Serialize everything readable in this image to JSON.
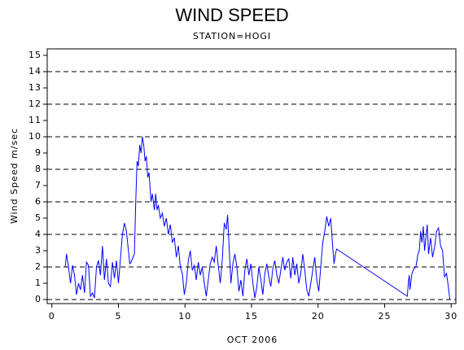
{
  "chart_data": {
    "type": "line",
    "title": "WIND SPEED",
    "subtitle": "STATION=HOGI",
    "x_label": "OCT 2006",
    "y_label": "Wind Speed m/sec",
    "xlim": [
      -0.35,
      30.35
    ],
    "xticks": [
      0,
      5,
      10,
      15,
      20,
      25,
      30
    ],
    "ylim": [
      -0.25,
      15.4
    ],
    "yticks": [
      0,
      1,
      2,
      3,
      4,
      5,
      6,
      7,
      8,
      9,
      10,
      11,
      12,
      13,
      14,
      15
    ],
    "grid_values": [
      0,
      2,
      4,
      6,
      8,
      10,
      12,
      14
    ],
    "grid_style": "dashed",
    "color": "#0000ff",
    "x": [
      1.0,
      1.1,
      1.25,
      1.4,
      1.55,
      1.7,
      1.85,
      2.0,
      2.15,
      2.3,
      2.45,
      2.6,
      2.75,
      2.9,
      3.05,
      3.2,
      3.35,
      3.5,
      3.65,
      3.8,
      3.95,
      4.1,
      4.25,
      4.4,
      4.55,
      4.7,
      4.85,
      5.0,
      5.15,
      5.3,
      5.45,
      5.6,
      5.75,
      5.85,
      5.95,
      6.05,
      6.2,
      6.3,
      6.4,
      6.5,
      6.6,
      6.7,
      6.8,
      6.9,
      7.0,
      7.1,
      7.2,
      7.3,
      7.45,
      7.55,
      7.7,
      7.8,
      7.9,
      8.0,
      8.15,
      8.3,
      8.45,
      8.6,
      8.75,
      8.9,
      9.05,
      9.2,
      9.35,
      9.5,
      9.65,
      9.8,
      9.95,
      10.1,
      10.25,
      10.4,
      10.55,
      10.7,
      10.85,
      11.0,
      11.15,
      11.3,
      11.45,
      11.6,
      11.75,
      11.9,
      12.05,
      12.2,
      12.35,
      12.5,
      12.65,
      12.8,
      12.95,
      13.1,
      13.2,
      13.3,
      13.45,
      13.6,
      13.75,
      13.9,
      14.05,
      14.2,
      14.35,
      14.5,
      14.65,
      14.8,
      14.95,
      15.1,
      15.25,
      15.4,
      15.55,
      15.7,
      15.85,
      16.0,
      16.15,
      16.3,
      16.45,
      16.6,
      16.75,
      16.9,
      17.05,
      17.2,
      17.35,
      17.5,
      17.65,
      17.8,
      17.95,
      18.1,
      18.25,
      18.4,
      18.55,
      18.7,
      18.85,
      19.0,
      19.15,
      19.3,
      19.45,
      19.6,
      19.75,
      19.9,
      20.05,
      20.2,
      20.35,
      20.5,
      20.65,
      20.8,
      20.95,
      21.1,
      21.2,
      21.3,
      21.4,
      26.7,
      26.8,
      26.85,
      26.9,
      27.05,
      27.2,
      27.35,
      27.5,
      27.6,
      27.7,
      27.8,
      27.9,
      28.0,
      28.1,
      28.2,
      28.3,
      28.45,
      28.6,
      28.75,
      28.9,
      29.05,
      29.2,
      29.35,
      29.5,
      29.65,
      29.8,
      29.9
    ],
    "values": [
      2.0,
      2.8,
      2.0,
      1.0,
      2.1,
      1.5,
      0.3,
      1.0,
      0.6,
      1.5,
      0.4,
      2.3,
      2.1,
      0.2,
      0.4,
      0.1,
      2.0,
      2.4,
      1.5,
      3.3,
      1.2,
      2.5,
      1.0,
      0.8,
      2.3,
      1.3,
      2.4,
      1.0,
      2.5,
      4.0,
      4.7,
      4.2,
      3.0,
      2.2,
      2.3,
      2.5,
      2.8,
      6.0,
      8.5,
      8.2,
      9.5,
      9.0,
      10.0,
      9.5,
      8.5,
      8.8,
      7.5,
      7.8,
      6.0,
      6.5,
      5.5,
      6.5,
      5.5,
      5.8,
      5.0,
      5.3,
      4.5,
      5.0,
      4.0,
      4.6,
      3.5,
      3.8,
      2.6,
      3.3,
      2.0,
      1.6,
      0.3,
      1.0,
      2.4,
      3.0,
      1.8,
      2.1,
      1.2,
      2.3,
      1.5,
      2.0,
      1.0,
      0.2,
      1.2,
      2.2,
      2.6,
      2.3,
      3.3,
      2.1,
      1.0,
      2.4,
      4.7,
      4.3,
      5.2,
      3.5,
      1.0,
      2.2,
      2.8,
      2.0,
      0.5,
      1.2,
      0.2,
      1.8,
      2.5,
      1.5,
      2.2,
      1.0,
      0.1,
      0.8,
      2.0,
      1.2,
      0.3,
      1.6,
      2.2,
      1.4,
      0.8,
      1.9,
      2.4,
      1.5,
      1.0,
      1.8,
      2.6,
      1.8,
      2.3,
      2.5,
      1.3,
      2.6,
      1.5,
      2.2,
      1.0,
      1.6,
      2.8,
      1.8,
      0.6,
      0.2,
      1.0,
      1.8,
      2.6,
      1.2,
      0.5,
      2.0,
      3.5,
      4.2,
      5.1,
      4.5,
      5.0,
      3.2,
      2.2,
      2.8,
      3.1,
      0.2,
      1.2,
      1.5,
      0.6,
      1.6,
      1.9,
      2.0,
      2.8,
      3.0,
      4.2,
      3.5,
      4.5,
      3.0,
      3.8,
      4.6,
      2.8,
      3.8,
      2.6,
      3.2,
      4.2,
      4.4,
      3.3,
      3.0,
      1.4,
      1.6,
      0.7,
      0.0
    ]
  }
}
